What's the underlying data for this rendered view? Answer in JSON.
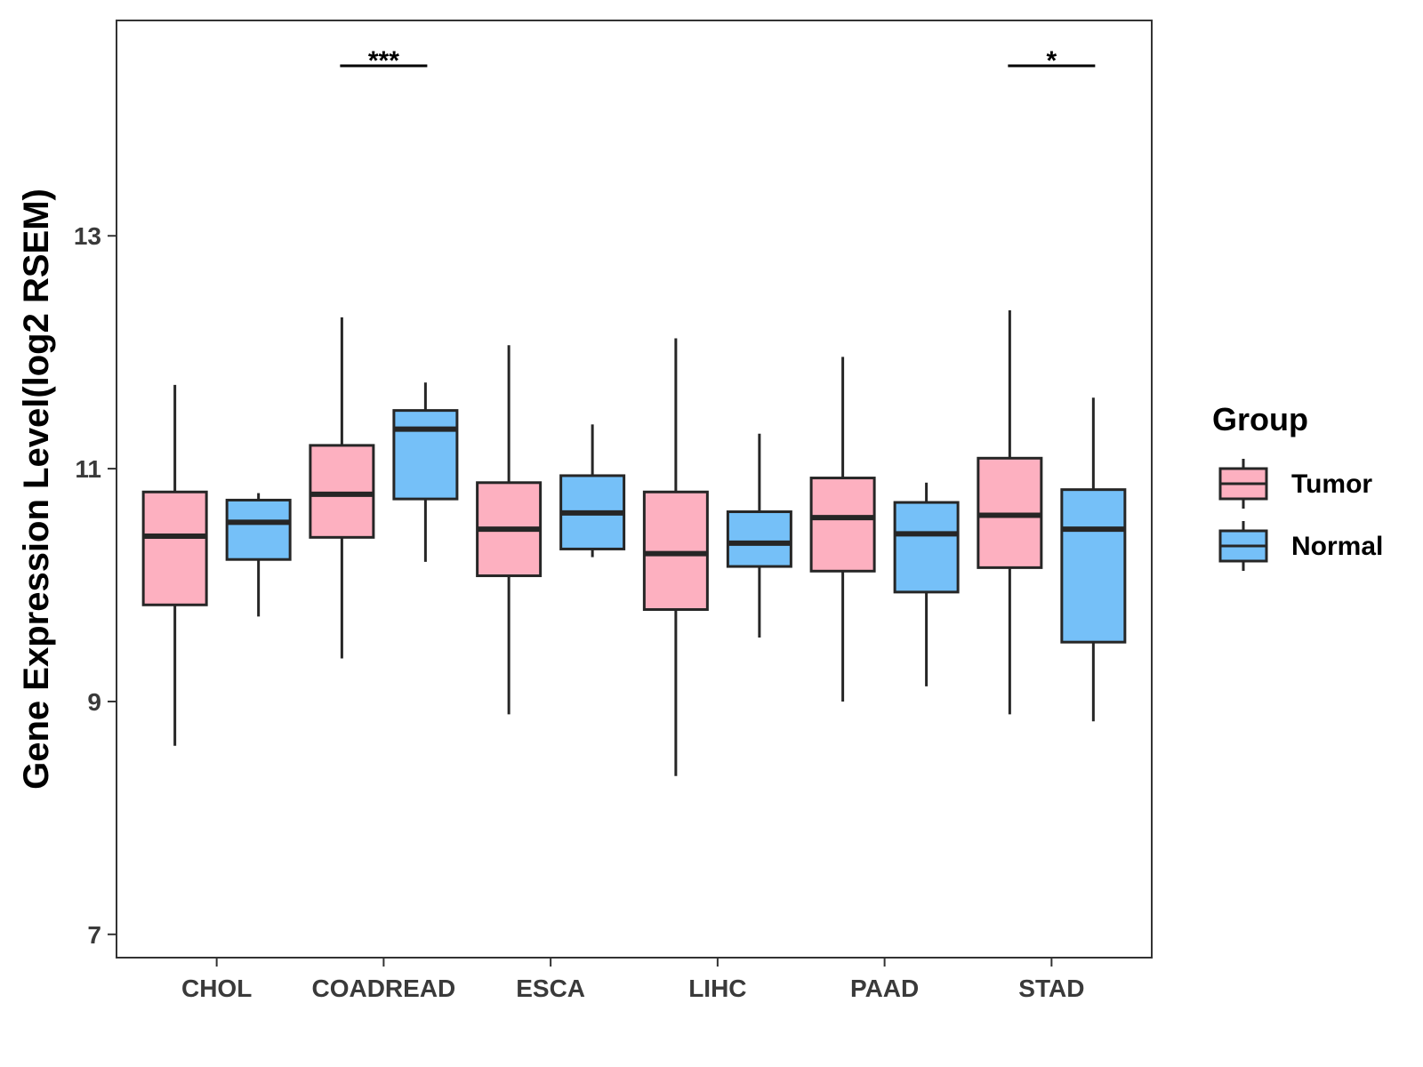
{
  "chart_data": {
    "type": "boxplot",
    "ylabel": "Gene Expression Level(log2 RSEM)",
    "xlabel": "",
    "ylim": [
      6.8,
      14.85
    ],
    "yticks": [
      7,
      9,
      11,
      13
    ],
    "categories": [
      "CHOL",
      "COADREAD",
      "ESCA",
      "LIHC",
      "PAAD",
      "STAD"
    ],
    "legend": {
      "title": "Group",
      "position": "right",
      "items": [
        {
          "name": "Tumor",
          "color": "#FDB0C0"
        },
        {
          "name": "Normal",
          "color": "#75C0F8"
        }
      ]
    },
    "series": [
      {
        "name": "Tumor",
        "color": "#FDB0C0",
        "boxes": [
          {
            "min": 8.62,
            "q1": 9.83,
            "median": 10.42,
            "q3": 10.8,
            "max": 11.72
          },
          {
            "min": 9.37,
            "q1": 10.41,
            "median": 10.78,
            "q3": 11.2,
            "max": 12.3
          },
          {
            "min": 8.89,
            "q1": 10.08,
            "median": 10.48,
            "q3": 10.88,
            "max": 12.06
          },
          {
            "min": 8.36,
            "q1": 9.79,
            "median": 10.27,
            "q3": 10.8,
            "max": 12.12
          },
          {
            "min": 9.0,
            "q1": 10.12,
            "median": 10.58,
            "q3": 10.92,
            "max": 11.96
          },
          {
            "min": 8.89,
            "q1": 10.15,
            "median": 10.6,
            "q3": 11.09,
            "max": 12.36
          }
        ]
      },
      {
        "name": "Normal",
        "color": "#75C0F8",
        "boxes": [
          {
            "min": 9.73,
            "q1": 10.22,
            "median": 10.54,
            "q3": 10.73,
            "max": 10.79
          },
          {
            "min": 10.2,
            "q1": 10.74,
            "median": 11.34,
            "q3": 11.5,
            "max": 11.74
          },
          {
            "min": 10.24,
            "q1": 10.31,
            "median": 10.62,
            "q3": 10.94,
            "max": 11.38
          },
          {
            "min": 9.55,
            "q1": 10.16,
            "median": 10.36,
            "q3": 10.63,
            "max": 11.3
          },
          {
            "min": 9.13,
            "q1": 9.94,
            "median": 10.44,
            "q3": 10.71,
            "max": 10.88
          },
          {
            "min": 8.83,
            "q1": 9.51,
            "median": 10.48,
            "q3": 10.82,
            "max": 11.61
          }
        ]
      }
    ],
    "significance": [
      {
        "category": "COADREAD",
        "label": "***"
      },
      {
        "category": "STAD",
        "label": "*"
      }
    ]
  }
}
